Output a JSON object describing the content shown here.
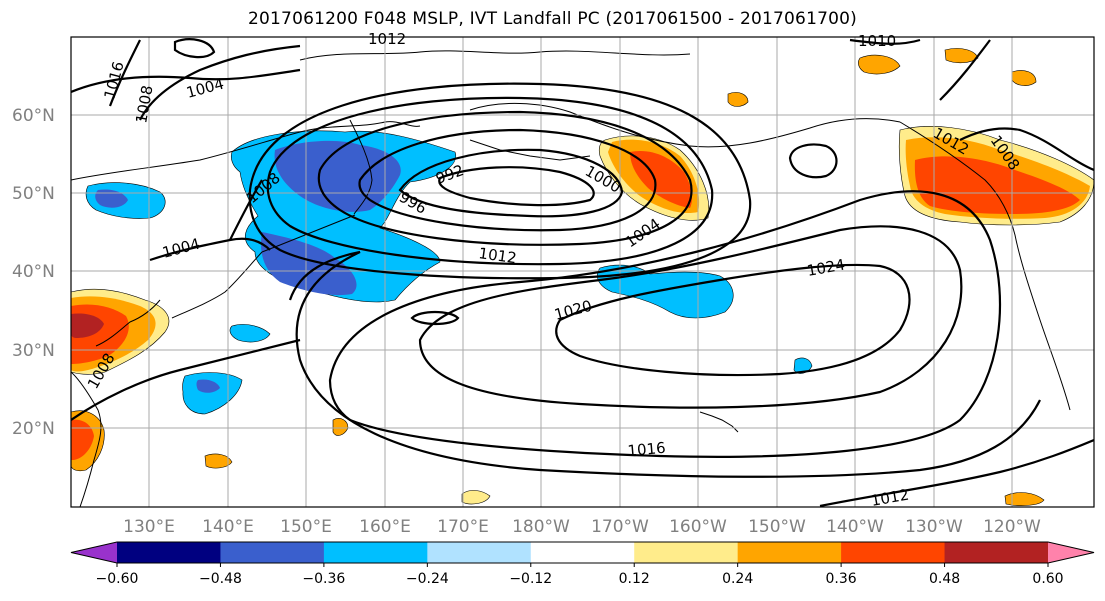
{
  "title": "2017061200 F048 MSLP, IVT Landfall PC (2017061500 - 2017061700)",
  "map": {
    "lat_labels": [
      "60°N",
      "50°N",
      "40°N",
      "30°N",
      "20°N"
    ],
    "lon_labels": [
      "130°E",
      "140°E",
      "150°E",
      "160°E",
      "170°E",
      "180°W",
      "170°W",
      "160°W",
      "150°W",
      "140°W",
      "130°W",
      "120°W"
    ],
    "contour_labels": [
      "1012",
      "1004",
      "1008",
      "1010",
      "1016",
      "1008",
      "992",
      "996",
      "1000",
      "1004",
      "1012",
      "1024",
      "1020",
      "1016",
      "1012",
      "1004",
      "1008",
      "1012",
      "1008"
    ]
  },
  "colorbar": {
    "ticks": [
      "−0.60",
      "−0.48",
      "−0.36",
      "−0.24",
      "−0.12",
      "0.12",
      "0.24",
      "0.36",
      "0.48",
      "0.60"
    ],
    "colors": [
      "#9932cc",
      "#000080",
      "#3a5fcd",
      "#00bfff",
      "#b0e2ff",
      "#ffffff",
      "#ffec8b",
      "#ffa500",
      "#ff4500",
      "#b22222",
      "#ff82ab"
    ]
  }
}
